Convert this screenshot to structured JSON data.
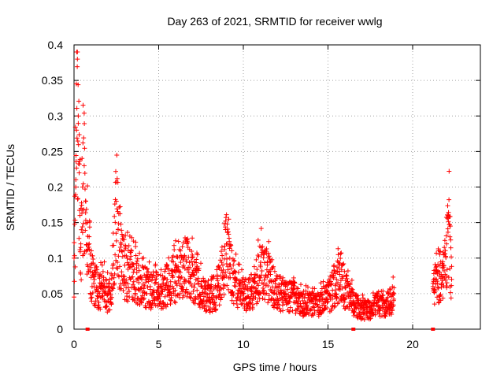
{
  "chart_data": {
    "type": "scatter",
    "title": "Day 263 of 2021, SRMTID for receiver wwlg",
    "xlabel": "GPS time / hours",
    "ylabel": "SRMTID / TECUs",
    "xlim": [
      0,
      24
    ],
    "ylim": [
      0,
      0.4
    ],
    "xticks": [
      0,
      5,
      10,
      15,
      20
    ],
    "xtick_labels": [
      "0",
      "5",
      "10",
      "15",
      "20"
    ],
    "yticks": [
      0,
      0.05,
      0.1,
      0.15,
      0.2,
      0.25,
      0.3,
      0.35,
      0.4
    ],
    "ytick_labels": [
      "0",
      "0.05",
      "0.1",
      "0.15",
      "0.2",
      "0.25",
      "0.3",
      "0.35",
      "0.4"
    ],
    "grid": true,
    "marker": "+",
    "color": "#ff0000",
    "series": [
      {
        "name": "SRMTID",
        "segments": [
          {
            "x": [
              0.0,
              0.1,
              0.15,
              0.2,
              0.25,
              0.3,
              0.35,
              0.4,
              0.5,
              0.6,
              0.7,
              0.8,
              0.9,
              1.0,
              1.1,
              1.2,
              1.5,
              1.8,
              2.0,
              2.2,
              2.5,
              2.6,
              2.8,
              3.0,
              3.5,
              4.0,
              4.5,
              5.0,
              5.5,
              6.0,
              6.5,
              7.0,
              7.5,
              8.0,
              8.5,
              9.0,
              9.2,
              9.5,
              10.0,
              10.5,
              11.0,
              11.5,
              12.0,
              12.5,
              13.0,
              13.5,
              14.0,
              14.5,
              15.0,
              15.5,
              15.8,
              16.0,
              16.5,
              17.0,
              17.5,
              18.0,
              18.5,
              18.9
            ],
            "y": [
              0.1,
              0.2,
              0.28,
              0.38,
              0.3,
              0.22,
              0.16,
              0.12,
              0.2,
              0.23,
              0.18,
              0.15,
              0.12,
              0.09,
              0.08,
              0.07,
              0.06,
              0.06,
              0.05,
              0.06,
              0.18,
              0.14,
              0.11,
              0.09,
              0.08,
              0.07,
              0.06,
              0.06,
              0.07,
              0.08,
              0.1,
              0.08,
              0.06,
              0.05,
              0.06,
              0.12,
              0.1,
              0.07,
              0.05,
              0.06,
              0.09,
              0.08,
              0.06,
              0.05,
              0.05,
              0.04,
              0.04,
              0.04,
              0.05,
              0.07,
              0.09,
              0.06,
              0.04,
              0.03,
              0.03,
              0.04,
              0.04,
              0.05
            ]
          },
          {
            "x": [
              21.2,
              21.4,
              21.6,
              21.8,
              22.0,
              22.1,
              22.2,
              22.3
            ],
            "y": [
              0.06,
              0.07,
              0.08,
              0.09,
              0.12,
              0.16,
              0.13,
              0.07
            ]
          }
        ]
      }
    ],
    "baseline_markers": {
      "x": [
        0.8,
        16.5,
        21.2
      ],
      "y": 0
    }
  }
}
